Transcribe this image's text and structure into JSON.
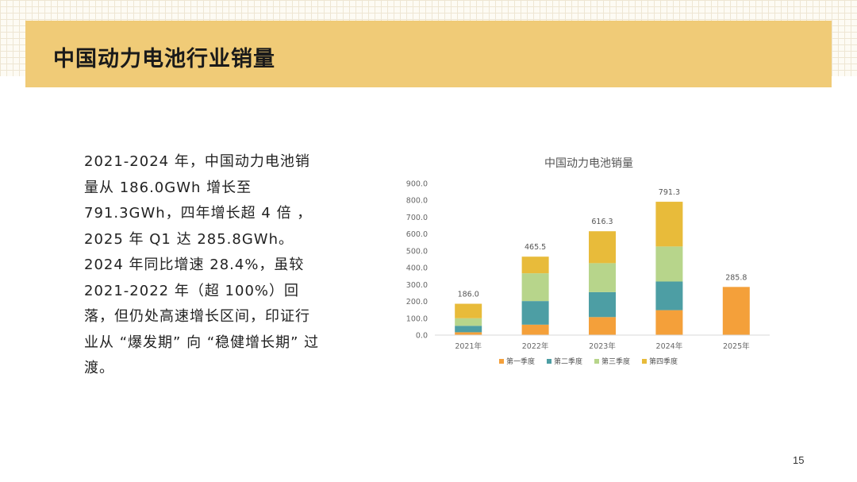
{
  "slide": {
    "title": "中国动力电池行业销量",
    "body": "2021-2024 年，中国动力电池销量从 186.0GWh 增长至 791.3GWh，四年增长超 4 倍 ，2025 年 Q1 达 285.8GWh。2024 年同比增速 28.4%，虽较 2021-2022 年（超 100%）回落，但仍处高速增长区间，印证行业从 “爆发期” 向 “稳健增长期” 过渡。",
    "page_number": "15"
  },
  "chart_data": {
    "type": "bar",
    "stacked": true,
    "title": "中国动力电池销量",
    "categories": [
      "2021年",
      "2022年",
      "2023年",
      "2024年",
      "2025年"
    ],
    "series": [
      {
        "name": "第一季度",
        "color": "#f4a03a",
        "values": [
          17,
          62,
          107,
          148,
          285.8
        ]
      },
      {
        "name": "第二季度",
        "color": "#4d9ea4",
        "values": [
          38,
          140,
          148,
          170,
          0
        ]
      },
      {
        "name": "第三季度",
        "color": "#b7d58b",
        "values": [
          45,
          165,
          172,
          208,
          0
        ]
      },
      {
        "name": "第四季度",
        "color": "#e8bb3a",
        "values": [
          86,
          98.5,
          189.3,
          265.3,
          0
        ]
      }
    ],
    "totals": [
      "186.0",
      "465.5",
      "616.3",
      "791.3",
      "285.8"
    ],
    "ylim": [
      0,
      900
    ],
    "ytick_labels": [
      "0.0",
      "100.0",
      "200.0",
      "300.0",
      "400.0",
      "500.0",
      "600.0",
      "700.0",
      "800.0",
      "900.0"
    ],
    "legend_position": "bottom",
    "grid": false
  }
}
